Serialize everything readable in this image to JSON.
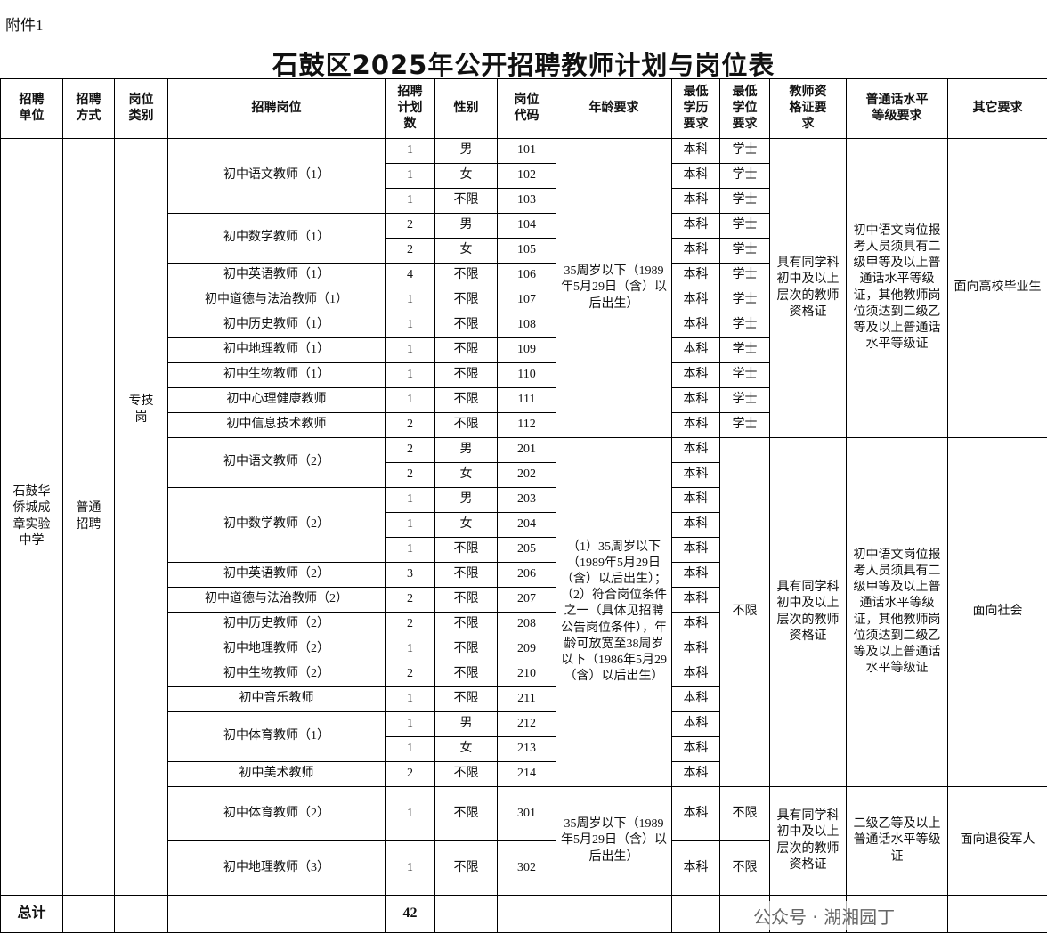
{
  "attachment": "附件1",
  "title": "石鼓区2025年公开招聘教师计划与岗位表",
  "watermark": "公众号 · 湖湘园丁",
  "table": {
    "headers": [
      "招聘单位",
      "招聘方式",
      "岗位类别",
      "招聘岗位",
      "招聘计划数",
      "性别",
      "岗位代码",
      "年龄要求",
      "最低学历要求",
      "最低学位要求",
      "教师资格证要求",
      "普通话水平等级要求",
      "其它要求"
    ],
    "unit": "石鼓华侨城成章实验中学",
    "method": "普通招聘",
    "category": "专技岗",
    "sections": [
      {
        "age": "35周岁以下（1989年5月29日（含）以后出生）",
        "certificate": "具有同学科初中及以上层次的教师资格证",
        "mandarin": "初中语文岗位报考人员须具有二级甲等及以上普通话水平等级证，其他教师岗位须达到二级乙等及以上普通话水平等级证",
        "other": "面向高校毕业生",
        "positions": [
          {
            "name": "初中语文教师（1）",
            "posts": [
              {
                "count": 1,
                "gender": "男",
                "code": "101",
                "education": "本科",
                "degree": "学士"
              },
              {
                "count": 1,
                "gender": "女",
                "code": "102",
                "education": "本科",
                "degree": "学士"
              },
              {
                "count": 1,
                "gender": "不限",
                "code": "103",
                "education": "本科",
                "degree": "学士"
              }
            ]
          },
          {
            "name": "初中数学教师（1）",
            "posts": [
              {
                "count": 2,
                "gender": "男",
                "code": "104",
                "education": "本科",
                "degree": "学士"
              },
              {
                "count": 2,
                "gender": "女",
                "code": "105",
                "education": "本科",
                "degree": "学士"
              }
            ]
          },
          {
            "name": "初中英语教师（1）",
            "posts": [
              {
                "count": 4,
                "gender": "不限",
                "code": "106",
                "education": "本科",
                "degree": "学士"
              }
            ]
          },
          {
            "name": "初中道德与法治教师（1）",
            "posts": [
              {
                "count": 1,
                "gender": "不限",
                "code": "107",
                "education": "本科",
                "degree": "学士"
              }
            ]
          },
          {
            "name": "初中历史教师（1）",
            "posts": [
              {
                "count": 1,
                "gender": "不限",
                "code": "108",
                "education": "本科",
                "degree": "学士"
              }
            ]
          },
          {
            "name": "初中地理教师（1）",
            "posts": [
              {
                "count": 1,
                "gender": "不限",
                "code": "109",
                "education": "本科",
                "degree": "学士"
              }
            ]
          },
          {
            "name": "初中生物教师（1）",
            "posts": [
              {
                "count": 1,
                "gender": "不限",
                "code": "110",
                "education": "本科",
                "degree": "学士"
              }
            ]
          },
          {
            "name": "初中心理健康教师",
            "posts": [
              {
                "count": 1,
                "gender": "不限",
                "code": "111",
                "education": "本科",
                "degree": "学士"
              }
            ]
          },
          {
            "name": "初中信息技术教师",
            "posts": [
              {
                "count": 2,
                "gender": "不限",
                "code": "112",
                "education": "本科",
                "degree": "学士"
              }
            ]
          }
        ]
      },
      {
        "age": "（1）35周岁以下（1989年5月29日（含）以后出生）；（2）符合岗位条件之一（具体见招聘公告岗位条件），年龄可放宽至38周岁以下（1986年5月29（含）以后出生）",
        "degree": "不限",
        "certificate": "具有同学科初中及以上层次的教师资格证",
        "mandarin": "初中语文岗位报考人员须具有二级甲等及以上普通话水平等级证，其他教师岗位须达到二级乙等及以上普通话水平等级证",
        "other": "面向社会",
        "positions": [
          {
            "name": "初中语文教师（2）",
            "posts": [
              {
                "count": 2,
                "gender": "男",
                "code": "201",
                "education": "本科"
              },
              {
                "count": 2,
                "gender": "女",
                "code": "202",
                "education": "本科"
              }
            ]
          },
          {
            "name": "初中数学教师（2）",
            "posts": [
              {
                "count": 1,
                "gender": "男",
                "code": "203",
                "education": "本科"
              },
              {
                "count": 1,
                "gender": "女",
                "code": "204",
                "education": "本科"
              },
              {
                "count": 1,
                "gender": "不限",
                "code": "205",
                "education": "本科"
              }
            ]
          },
          {
            "name": "初中英语教师（2）",
            "posts": [
              {
                "count": 3,
                "gender": "不限",
                "code": "206",
                "education": "本科"
              }
            ]
          },
          {
            "name": "初中道德与法治教师（2）",
            "posts": [
              {
                "count": 2,
                "gender": "不限",
                "code": "207",
                "education": "本科"
              }
            ]
          },
          {
            "name": "初中历史教师（2）",
            "posts": [
              {
                "count": 2,
                "gender": "不限",
                "code": "208",
                "education": "本科"
              }
            ]
          },
          {
            "name": "初中地理教师（2）",
            "posts": [
              {
                "count": 1,
                "gender": "不限",
                "code": "209",
                "education": "本科"
              }
            ]
          },
          {
            "name": "初中生物教师（2）",
            "posts": [
              {
                "count": 2,
                "gender": "不限",
                "code": "210",
                "education": "本科"
              }
            ]
          },
          {
            "name": "初中音乐教师",
            "posts": [
              {
                "count": 1,
                "gender": "不限",
                "code": "211",
                "education": "本科"
              }
            ]
          },
          {
            "name": "初中体育教师（1）",
            "posts": [
              {
                "count": 1,
                "gender": "男",
                "code": "212",
                "education": "本科"
              },
              {
                "count": 1,
                "gender": "女",
                "code": "213",
                "education": "本科"
              }
            ]
          },
          {
            "name": "初中美术教师",
            "posts": [
              {
                "count": 2,
                "gender": "不限",
                "code": "214",
                "education": "本科"
              }
            ]
          }
        ]
      },
      {
        "age": "35周岁以下（1989年5月29日（含）以后出生）",
        "certificate": "具有同学科初中及以上层次的教师资格证",
        "mandarin": "二级乙等及以上普通话水平等级证",
        "other": "面向退役军人",
        "positions": [
          {
            "name": "初中体育教师（2）",
            "posts": [
              {
                "count": 1,
                "gender": "不限",
                "code": "301",
                "education": "本科",
                "degree": "不限"
              }
            ]
          },
          {
            "name": "初中地理教师（3）",
            "posts": [
              {
                "count": 1,
                "gender": "不限",
                "code": "302",
                "education": "本科",
                "degree": "不限"
              }
            ]
          }
        ]
      }
    ],
    "total_label": "总计",
    "total": 42
  }
}
